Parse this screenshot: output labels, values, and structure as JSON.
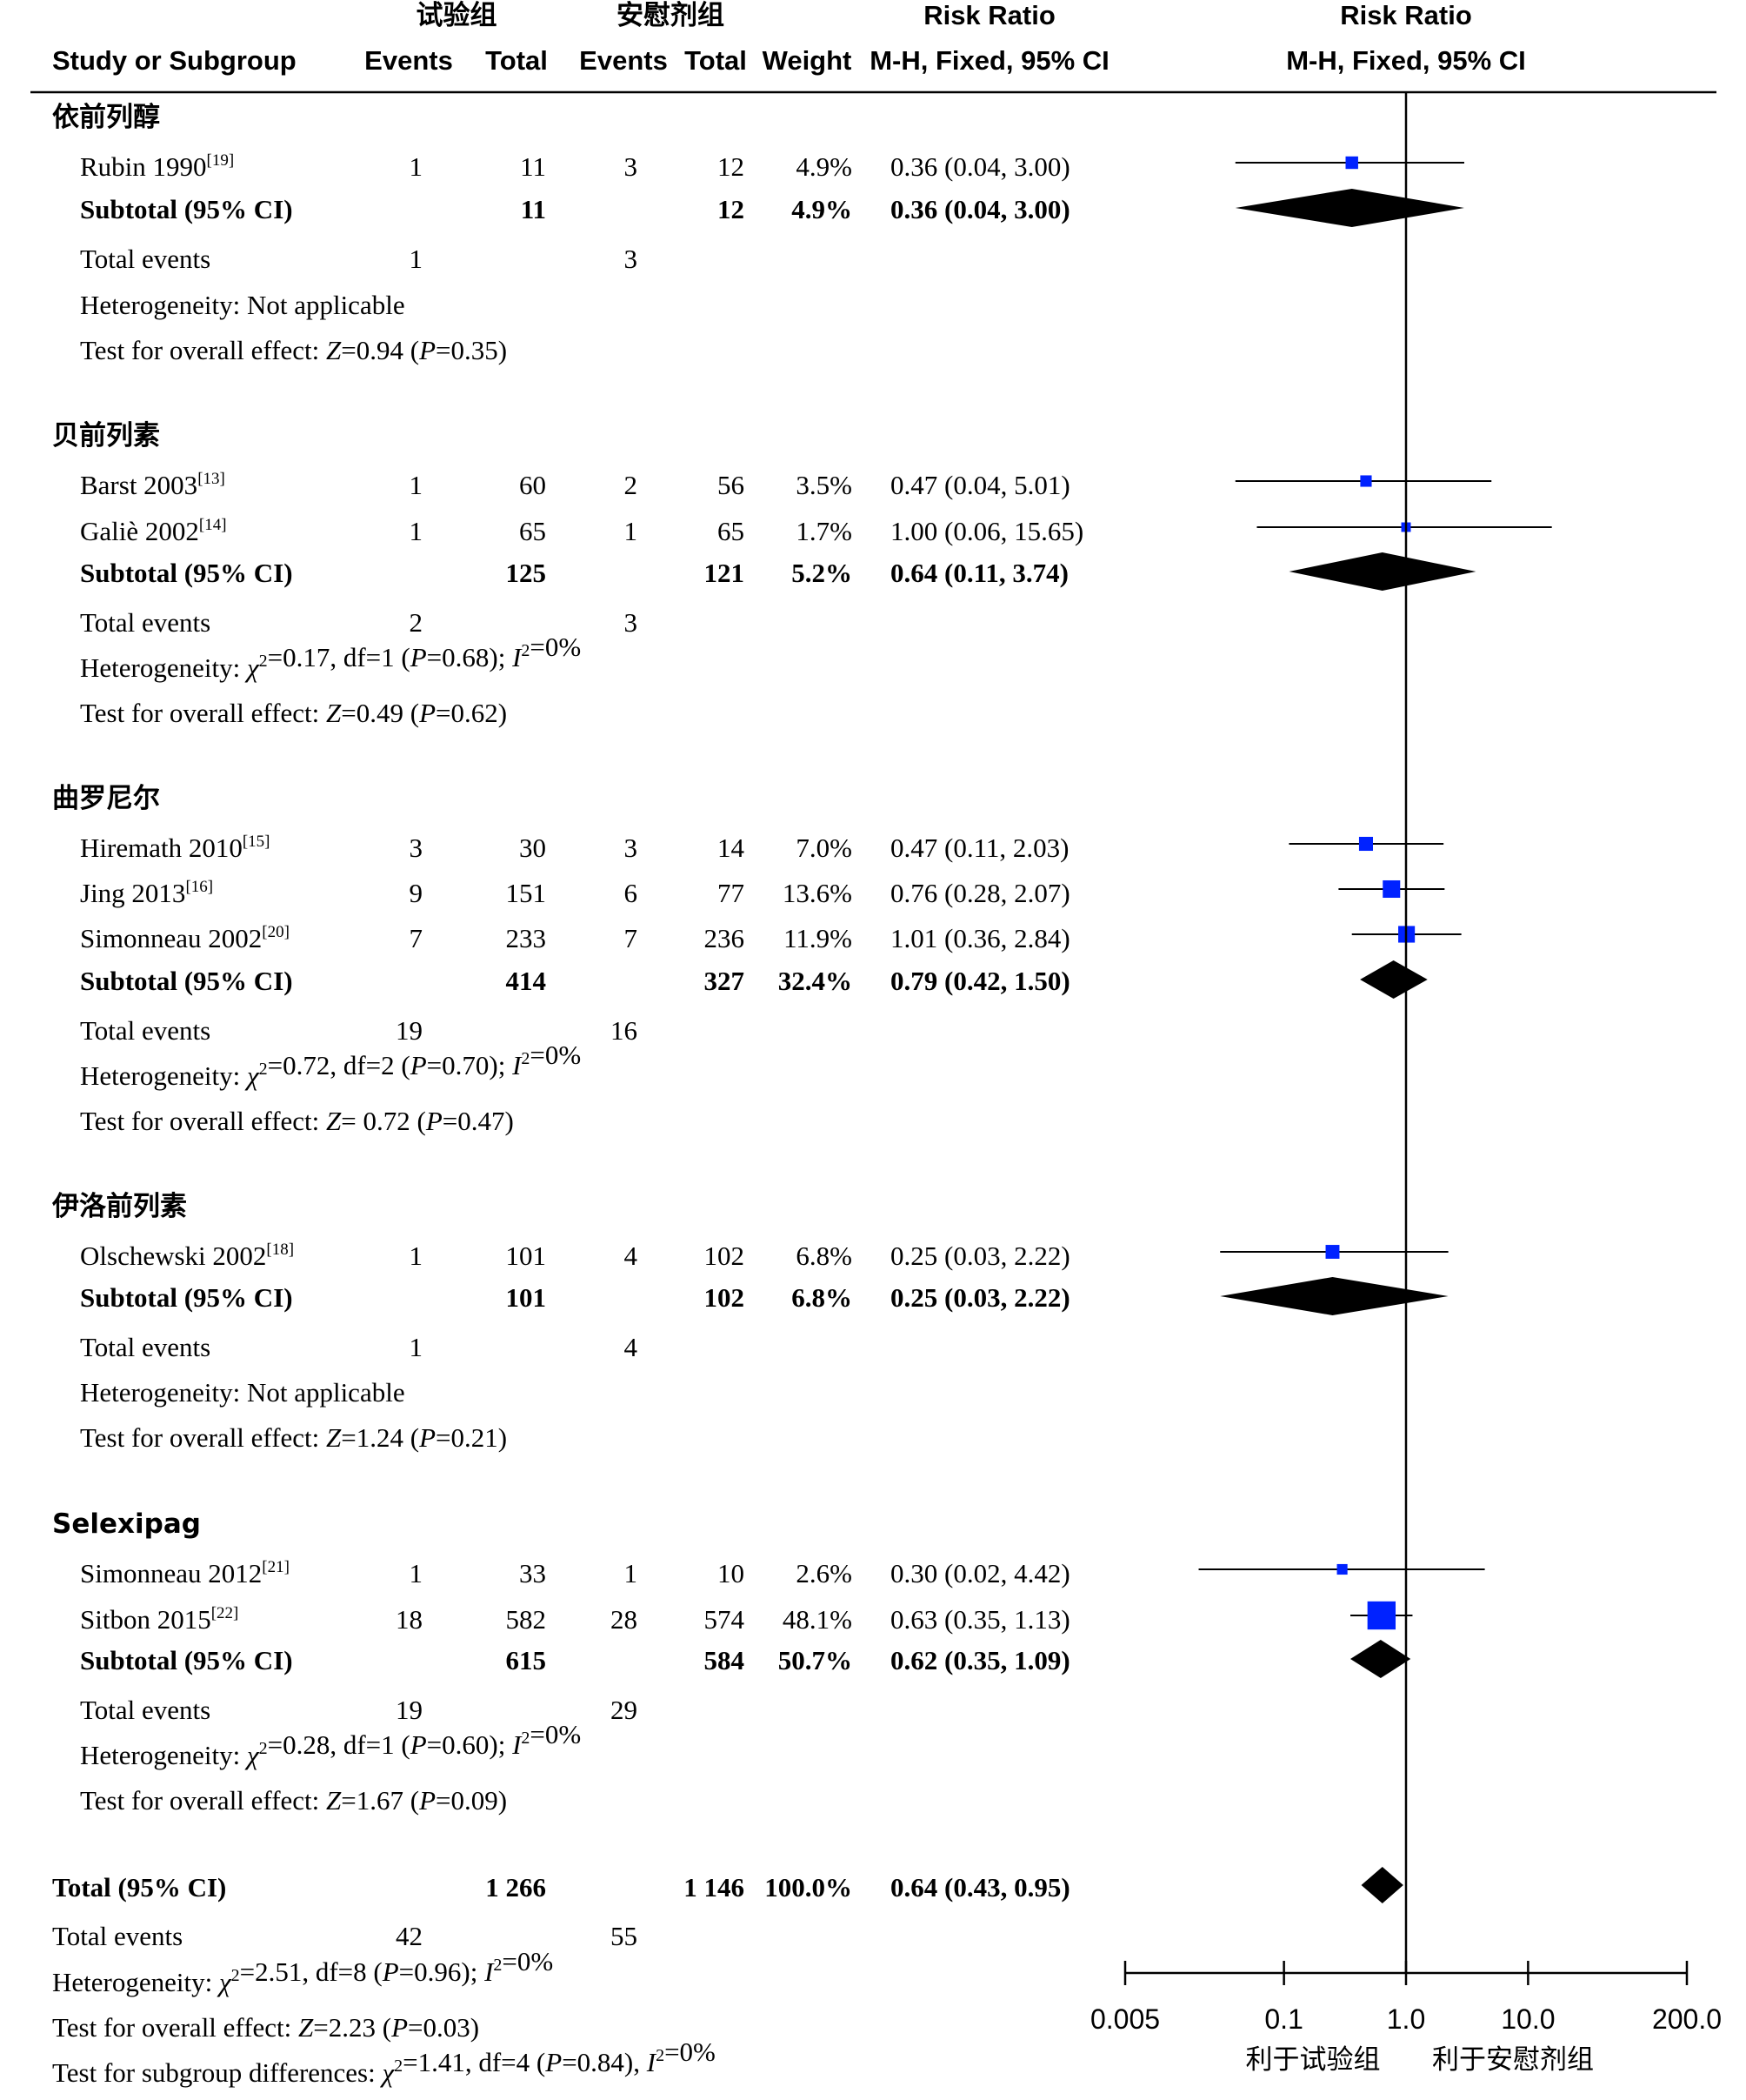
{
  "header": {
    "group_exp": "试验组",
    "group_pla": "安慰剂组",
    "rr1": "Risk Ratio",
    "rr2": "Risk Ratio",
    "study": "Study or Subgroup",
    "events1": "Events",
    "total1": "Total",
    "events2": "Events",
    "total2": "Total",
    "weight": "Weight",
    "method1": "M-H, Fixed, 95% CI",
    "method2": "M-H, Fixed, 95% CI"
  },
  "groups": [
    {
      "name": "依前列醇",
      "studies": [
        {
          "study": "Rubin 1990",
          "ref": "[19]",
          "e1": "1",
          "t1": "11",
          "e2": "3",
          "t2": "12",
          "weight": "4.9%",
          "ci_text": "0.36 (0.04, 3.00)"
        }
      ],
      "subtotal": {
        "label": "Subtotal (95% CI)",
        "t1": "11",
        "t2": "12",
        "weight": "4.9%",
        "ci_text": "0.36 (0.04, 3.00)"
      },
      "total_events": {
        "label": "Total events",
        "e1": "1",
        "e2": "3"
      },
      "heterogeneity": "Heterogeneity: Not applicable",
      "overall": "Test for overall effect: Z=0.94 (P=0.35)"
    },
    {
      "name": "贝前列素",
      "studies": [
        {
          "study": "Barst 2003",
          "ref": "[13]",
          "e1": "1",
          "t1": "60",
          "e2": "2",
          "t2": "56",
          "weight": "3.5%",
          "ci_text": "0.47 (0.04, 5.01)"
        },
        {
          "study": "Galiè 2002",
          "ref": "[14]",
          "e1": "1",
          "t1": "65",
          "e2": "1",
          "t2": "65",
          "weight": "1.7%",
          "ci_text": "1.00 (0.06, 15.65)"
        }
      ],
      "subtotal": {
        "label": "Subtotal (95% CI)",
        "t1": "125",
        "t2": "121",
        "weight": "5.2%",
        "ci_text": "0.64 (0.11, 3.74)"
      },
      "total_events": {
        "label": "Total events",
        "e1": "2",
        "e2": "3"
      },
      "heterogeneity": "Heterogeneity: χ²=0.17, df=1 (P=0.68); I²=0%",
      "overall": "Test for overall effect: Z=0.49 (P=0.62)"
    },
    {
      "name": "曲罗尼尔",
      "studies": [
        {
          "study": "Hiremath 2010",
          "ref": "[15]",
          "e1": "3",
          "t1": "30",
          "e2": "3",
          "t2": "14",
          "weight": "7.0%",
          "ci_text": "0.47 (0.11, 2.03)"
        },
        {
          "study": "Jing 2013",
          "ref": "[16]",
          "e1": "9",
          "t1": "151",
          "e2": "6",
          "t2": "77",
          "weight": "13.6%",
          "ci_text": "0.76 (0.28, 2.07)"
        },
        {
          "study": "Simonneau 2002",
          "ref": "[20]",
          "e1": "7",
          "t1": "233",
          "e2": "7",
          "t2": "236",
          "weight": "11.9%",
          "ci_text": "1.01 (0.36, 2.84)"
        }
      ],
      "subtotal": {
        "label": "Subtotal (95% CI)",
        "t1": "414",
        "t2": "327",
        "weight": "32.4%",
        "ci_text": "0.79 (0.42, 1.50)"
      },
      "total_events": {
        "label": "Total events",
        "e1": "19",
        "e2": "16"
      },
      "heterogeneity": "Heterogeneity: χ²=0.72, df=2 (P=0.70); I²=0%",
      "overall": "Test for overall effect: Z= 0.72 (P=0.47)"
    },
    {
      "name": "伊洛前列素",
      "studies": [
        {
          "study": "Olschewski 2002",
          "ref": "[18]",
          "e1": "1",
          "t1": "101",
          "e2": "4",
          "t2": "102",
          "weight": "6.8%",
          "ci_text": "0.25 (0.03, 2.22)"
        }
      ],
      "subtotal": {
        "label": "Subtotal (95% CI)",
        "t1": "101",
        "t2": "102",
        "weight": "6.8%",
        "ci_text": "0.25 (0.03, 2.22)"
      },
      "total_events": {
        "label": "Total events",
        "e1": "1",
        "e2": "4"
      },
      "heterogeneity": "Heterogeneity: Not applicable",
      "overall": "Test for overall effect: Z=1.24 (P=0.21)"
    },
    {
      "name": "Selexipag",
      "studies": [
        {
          "study": "Simonneau 2012",
          "ref": "[21]",
          "e1": "1",
          "t1": "33",
          "e2": "1",
          "t2": "10",
          "weight": "2.6%",
          "ci_text": "0.30 (0.02, 4.42)"
        },
        {
          "study": "Sitbon 2015",
          "ref": "[22]",
          "e1": "18",
          "t1": "582",
          "e2": "28",
          "t2": "574",
          "weight": "48.1%",
          "ci_text": "0.63 (0.35, 1.13)"
        }
      ],
      "subtotal": {
        "label": "Subtotal (95% CI)",
        "t1": "615",
        "t2": "584",
        "weight": "50.7%",
        "ci_text": "0.62 (0.35, 1.09)"
      },
      "total_events": {
        "label": "Total events",
        "e1": "19",
        "e2": "29"
      },
      "heterogeneity": "Heterogeneity: χ²=0.28, df=1 (P=0.60); I²=0%",
      "overall": "Test for overall effect: Z=1.67 (P=0.09)"
    }
  ],
  "total": {
    "label": "Total (95% CI)",
    "t1": "1 266",
    "t2": "1 146",
    "weight": "100.0%",
    "ci_text": "0.64 (0.43, 0.95)"
  },
  "total_events": {
    "label": "Total events",
    "e1": "42",
    "e2": "55"
  },
  "total_heterogeneity": "Heterogeneity: χ²=2.51, df=8 (P=0.96); I²=0%",
  "total_overall": "Test for overall effect: Z=2.23 (P=0.03)",
  "subgroup_diff": "Test for subgroup differences: χ²=1.41, df=4 (P=0.84), I²=0%",
  "axis": {
    "ticks": [
      "0.005",
      "0.1",
      "1.0",
      "10.0",
      "200.0"
    ],
    "favours_left": "利于试验组",
    "favours_right": "利于安慰剂组"
  },
  "colors": {
    "study_marker": "#0022ff",
    "diamond": "#000000",
    "text": "#000000"
  },
  "chart_data": {
    "type": "forest",
    "x_scale": "log",
    "xlim": [
      0.005,
      200
    ],
    "reference_line": 1,
    "studies": [
      {
        "group": "依前列醇",
        "study": "Rubin 1990",
        "rr": 0.36,
        "lo": 0.04,
        "hi": 3.0,
        "weight": 4.9
      },
      {
        "group": "贝前列素",
        "study": "Barst 2003",
        "rr": 0.47,
        "lo": 0.04,
        "hi": 5.01,
        "weight": 3.5
      },
      {
        "group": "贝前列素",
        "study": "Galiè 2002",
        "rr": 1.0,
        "lo": 0.06,
        "hi": 15.65,
        "weight": 1.7
      },
      {
        "group": "曲罗尼尔",
        "study": "Hiremath 2010",
        "rr": 0.47,
        "lo": 0.11,
        "hi": 2.03,
        "weight": 7.0
      },
      {
        "group": "曲罗尼尔",
        "study": "Jing 2013",
        "rr": 0.76,
        "lo": 0.28,
        "hi": 2.07,
        "weight": 13.6
      },
      {
        "group": "曲罗尼尔",
        "study": "Simonneau 2002",
        "rr": 1.01,
        "lo": 0.36,
        "hi": 2.84,
        "weight": 11.9
      },
      {
        "group": "伊洛前列素",
        "study": "Olschewski 2002",
        "rr": 0.25,
        "lo": 0.03,
        "hi": 2.22,
        "weight": 6.8
      },
      {
        "group": "Selexipag",
        "study": "Simonneau 2012",
        "rr": 0.3,
        "lo": 0.02,
        "hi": 4.42,
        "weight": 2.6
      },
      {
        "group": "Selexipag",
        "study": "Sitbon 2015",
        "rr": 0.63,
        "lo": 0.35,
        "hi": 1.13,
        "weight": 48.1
      }
    ],
    "subtotals": [
      {
        "group": "依前列醇",
        "rr": 0.36,
        "lo": 0.04,
        "hi": 3.0
      },
      {
        "group": "贝前列素",
        "rr": 0.64,
        "lo": 0.11,
        "hi": 3.74
      },
      {
        "group": "曲罗尼尔",
        "rr": 0.79,
        "lo": 0.42,
        "hi": 1.5
      },
      {
        "group": "伊洛前列素",
        "rr": 0.25,
        "lo": 0.03,
        "hi": 2.22
      },
      {
        "group": "Selexipag",
        "rr": 0.62,
        "lo": 0.35,
        "hi": 1.09
      }
    ],
    "overall": {
      "rr": 0.64,
      "lo": 0.43,
      "hi": 0.95
    }
  }
}
